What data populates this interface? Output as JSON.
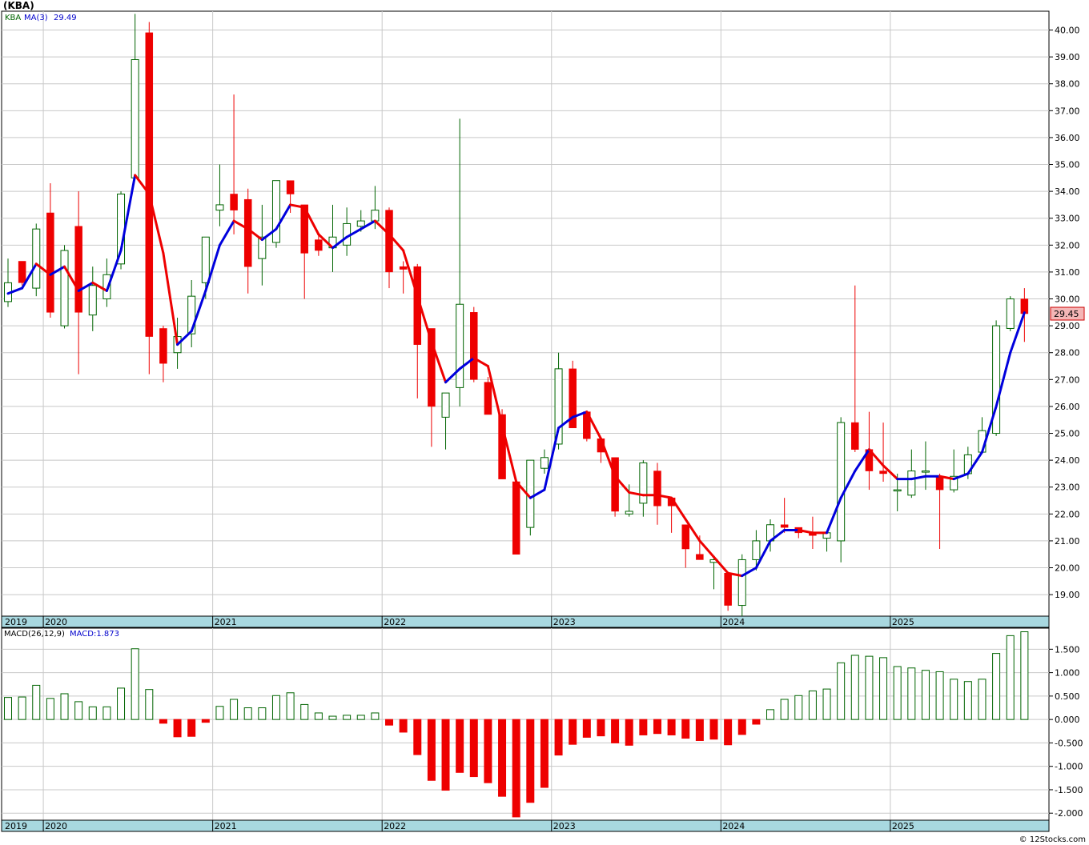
{
  "header": {
    "symbol": "(KBA)",
    "credit": "© 12Stocks.com"
  },
  "colors": {
    "up": "#006400",
    "down": "#ee0000",
    "ma_up": "#0000dd",
    "ma_down": "#ee0000",
    "timeline": "#a8d8e0",
    "grid": "#c8c8c8"
  },
  "chart_data": [
    {
      "type": "candlestick",
      "legend": {
        "symbol": "KBA",
        "ma_label": "MA(3)",
        "ma_value": "29.49"
      },
      "last_price": "29.45",
      "ylim": [
        18.2,
        40.7
      ],
      "y_ticks": [
        19.0,
        20.0,
        21.0,
        22.0,
        23.0,
        24.0,
        25.0,
        26.0,
        27.0,
        28.0,
        29.0,
        30.0,
        31.0,
        32.0,
        33.0,
        34.0,
        35.0,
        36.0,
        37.0,
        38.0,
        39.0,
        40.0
      ],
      "x_labels": [
        {
          "label": "2019",
          "index": 0
        },
        {
          "label": "2020",
          "index": 3
        },
        {
          "label": "2021",
          "index": 15
        },
        {
          "label": "2022",
          "index": 27
        },
        {
          "label": "2023",
          "index": 39
        },
        {
          "label": "2024",
          "index": 51
        },
        {
          "label": "2025",
          "index": 63
        }
      ],
      "candles": [
        {
          "o": 29.9,
          "h": 31.5,
          "l": 29.7,
          "c": 30.6
        },
        {
          "o": 31.4,
          "h": 31.4,
          "l": 30.5,
          "c": 30.6
        },
        {
          "o": 30.4,
          "h": 32.8,
          "l": 30.1,
          "c": 32.6
        },
        {
          "o": 33.2,
          "h": 34.3,
          "l": 29.3,
          "c": 29.5
        },
        {
          "o": 29.0,
          "h": 32.0,
          "l": 28.9,
          "c": 31.8
        },
        {
          "o": 32.7,
          "h": 34.0,
          "l": 27.2,
          "c": 29.5
        },
        {
          "o": 29.4,
          "h": 31.2,
          "l": 28.8,
          "c": 30.5
        },
        {
          "o": 30.0,
          "h": 31.5,
          "l": 29.7,
          "c": 30.9
        },
        {
          "o": 31.3,
          "h": 34.0,
          "l": 31.1,
          "c": 33.9
        },
        {
          "o": 34.5,
          "h": 40.6,
          "l": 34.5,
          "c": 38.9
        },
        {
          "o": 39.9,
          "h": 40.3,
          "l": 27.2,
          "c": 28.6
        },
        {
          "o": 28.9,
          "h": 29.0,
          "l": 26.9,
          "c": 27.6
        },
        {
          "o": 28.0,
          "h": 29.3,
          "l": 27.4,
          "c": 28.6
        },
        {
          "o": 28.7,
          "h": 30.7,
          "l": 28.2,
          "c": 30.1
        },
        {
          "o": 30.6,
          "h": 32.3,
          "l": 30.0,
          "c": 32.3
        },
        {
          "o": 33.3,
          "h": 35.0,
          "l": 32.7,
          "c": 33.5
        },
        {
          "o": 33.9,
          "h": 37.6,
          "l": 32.4,
          "c": 33.3
        },
        {
          "o": 33.7,
          "h": 34.1,
          "l": 30.2,
          "c": 31.2
        },
        {
          "o": 31.5,
          "h": 33.5,
          "l": 30.5,
          "c": 32.3
        },
        {
          "o": 32.1,
          "h": 34.3,
          "l": 31.9,
          "c": 34.4
        },
        {
          "o": 34.4,
          "h": 34.4,
          "l": 33.2,
          "c": 33.9
        },
        {
          "o": 33.5,
          "h": 33.5,
          "l": 30.0,
          "c": 31.7
        },
        {
          "o": 32.2,
          "h": 32.4,
          "l": 31.6,
          "c": 31.8
        },
        {
          "o": 31.9,
          "h": 33.5,
          "l": 31.0,
          "c": 32.3
        },
        {
          "o": 32.0,
          "h": 33.4,
          "l": 31.6,
          "c": 32.8
        },
        {
          "o": 32.7,
          "h": 33.3,
          "l": 32.5,
          "c": 32.9
        },
        {
          "o": 32.9,
          "h": 34.2,
          "l": 32.6,
          "c": 33.3
        },
        {
          "o": 33.3,
          "h": 33.4,
          "l": 30.4,
          "c": 31.0
        },
        {
          "o": 31.2,
          "h": 31.4,
          "l": 30.2,
          "c": 31.1
        },
        {
          "o": 31.2,
          "h": 31.3,
          "l": 26.3,
          "c": 28.3
        },
        {
          "o": 28.9,
          "h": 28.9,
          "l": 24.5,
          "c": 26.0
        },
        {
          "o": 25.6,
          "h": 26.5,
          "l": 24.4,
          "c": 26.5
        },
        {
          "o": 26.7,
          "h": 36.7,
          "l": 26.0,
          "c": 29.8
        },
        {
          "o": 29.5,
          "h": 29.7,
          "l": 26.9,
          "c": 27.0
        },
        {
          "o": 26.9,
          "h": 27.1,
          "l": 25.7,
          "c": 25.7
        },
        {
          "o": 25.7,
          "h": 25.9,
          "l": 23.3,
          "c": 23.3
        },
        {
          "o": 23.2,
          "h": 23.3,
          "l": 20.5,
          "c": 20.5
        },
        {
          "o": 21.5,
          "h": 24.0,
          "l": 21.2,
          "c": 24.0
        },
        {
          "o": 23.7,
          "h": 24.4,
          "l": 23.5,
          "c": 24.1
        },
        {
          "o": 24.6,
          "h": 28.0,
          "l": 24.4,
          "c": 27.4
        },
        {
          "o": 27.4,
          "h": 27.7,
          "l": 25.2,
          "c": 25.2
        },
        {
          "o": 25.8,
          "h": 25.8,
          "l": 24.7,
          "c": 24.8
        },
        {
          "o": 24.8,
          "h": 24.8,
          "l": 23.9,
          "c": 24.3
        },
        {
          "o": 24.1,
          "h": 24.1,
          "l": 21.9,
          "c": 22.1
        },
        {
          "o": 22.0,
          "h": 23.1,
          "l": 21.9,
          "c": 22.1
        },
        {
          "o": 22.4,
          "h": 24.0,
          "l": 21.9,
          "c": 23.9
        },
        {
          "o": 23.6,
          "h": 23.9,
          "l": 21.6,
          "c": 22.3
        },
        {
          "o": 22.6,
          "h": 22.6,
          "l": 21.3,
          "c": 22.3
        },
        {
          "o": 21.6,
          "h": 21.6,
          "l": 20.0,
          "c": 20.7
        },
        {
          "o": 20.5,
          "h": 21.2,
          "l": 20.3,
          "c": 20.3
        },
        {
          "o": 20.2,
          "h": 20.4,
          "l": 19.2,
          "c": 20.3
        },
        {
          "o": 19.8,
          "h": 19.8,
          "l": 18.4,
          "c": 18.6
        },
        {
          "o": 18.6,
          "h": 20.5,
          "l": 18.2,
          "c": 20.3
        },
        {
          "o": 20.3,
          "h": 21.4,
          "l": 19.9,
          "c": 21.0
        },
        {
          "o": 21.0,
          "h": 21.8,
          "l": 20.6,
          "c": 21.6
        },
        {
          "o": 21.6,
          "h": 22.6,
          "l": 21.3,
          "c": 21.5
        },
        {
          "o": 21.5,
          "h": 21.5,
          "l": 21.1,
          "c": 21.3
        },
        {
          "o": 21.3,
          "h": 21.9,
          "l": 20.7,
          "c": 21.2
        },
        {
          "o": 21.1,
          "h": 21.2,
          "l": 20.6,
          "c": 21.3
        },
        {
          "o": 21.0,
          "h": 25.6,
          "l": 20.2,
          "c": 25.4
        },
        {
          "o": 25.4,
          "h": 30.5,
          "l": 24.3,
          "c": 24.4
        },
        {
          "o": 24.4,
          "h": 25.8,
          "l": 22.9,
          "c": 23.6
        },
        {
          "o": 23.6,
          "h": 25.4,
          "l": 23.2,
          "c": 23.5
        },
        {
          "o": 22.9,
          "h": 23.5,
          "l": 22.1,
          "c": 22.9
        },
        {
          "o": 22.7,
          "h": 24.4,
          "l": 22.6,
          "c": 23.6
        },
        {
          "o": 23.6,
          "h": 24.7,
          "l": 22.9,
          "c": 23.6
        },
        {
          "o": 23.4,
          "h": 23.5,
          "l": 20.7,
          "c": 22.9
        },
        {
          "o": 22.9,
          "h": 24.4,
          "l": 22.8,
          "c": 23.4
        },
        {
          "o": 23.5,
          "h": 24.5,
          "l": 23.3,
          "c": 24.2
        },
        {
          "o": 24.3,
          "h": 25.6,
          "l": 24.3,
          "c": 25.1
        },
        {
          "o": 25.0,
          "h": 29.2,
          "l": 24.9,
          "c": 29.0
        },
        {
          "o": 28.9,
          "h": 30.1,
          "l": 28.8,
          "c": 30.0
        },
        {
          "o": 30.0,
          "h": 30.4,
          "l": 28.4,
          "c": 29.45
        }
      ],
      "ma": [
        30.2,
        30.4,
        31.3,
        30.9,
        31.2,
        30.3,
        30.6,
        30.3,
        31.8,
        34.6,
        33.9,
        31.7,
        28.3,
        28.8,
        30.3,
        32.0,
        32.9,
        32.6,
        32.2,
        32.6,
        33.5,
        33.4,
        32.4,
        31.9,
        32.3,
        32.6,
        32.9,
        32.4,
        31.8,
        30.1,
        28.4,
        26.9,
        27.4,
        27.8,
        27.5,
        25.3,
        23.2,
        22.6,
        22.9,
        25.2,
        25.6,
        25.8,
        24.8,
        23.4,
        22.8,
        22.7,
        22.7,
        22.6,
        21.8,
        21.0,
        20.4,
        19.8,
        19.7,
        20.0,
        21.0,
        21.4,
        21.4,
        21.3,
        21.3,
        22.6,
        23.6,
        24.4,
        23.8,
        23.3,
        23.3,
        23.4,
        23.4,
        23.3,
        23.5,
        24.3,
        26.0,
        28.0,
        29.49
      ],
      "ma_trend": [
        "up",
        "up",
        "up",
        "down",
        "up",
        "down",
        "up",
        "down",
        "up",
        "up",
        "down",
        "down",
        "down",
        "up",
        "up",
        "up",
        "up",
        "down",
        "down",
        "up",
        "up",
        "down",
        "down",
        "down",
        "up",
        "up",
        "up",
        "down",
        "down",
        "down",
        "down",
        "down",
        "up",
        "up",
        "down",
        "down",
        "down",
        "down",
        "up",
        "up",
        "up",
        "up",
        "down",
        "down",
        "down",
        "down",
        "down",
        "down",
        "down",
        "down",
        "down",
        "down",
        "down",
        "up",
        "up",
        "up",
        "up",
        "down",
        "down",
        "up",
        "up",
        "up",
        "down",
        "down",
        "up",
        "up",
        "up",
        "down",
        "up",
        "up",
        "up",
        "up",
        "up"
      ]
    },
    {
      "type": "bar",
      "legend": {
        "label": "MACD(26,12,9)",
        "value_label": "MACD:1.873"
      },
      "ylim": [
        -2.15,
        1.95
      ],
      "y_ticks": [
        -2.0,
        -1.5,
        -1.0,
        -0.5,
        0.0,
        0.5,
        1.0,
        1.5
      ],
      "y_tick_labels": [
        "-2.000",
        "-1.500",
        "-1.000",
        "-0.500",
        "0.000",
        "0.500",
        "1.000",
        "1.500"
      ],
      "values": [
        0.47,
        0.48,
        0.73,
        0.45,
        0.55,
        0.38,
        0.27,
        0.27,
        0.67,
        1.51,
        0.64,
        -0.08,
        -0.37,
        -0.36,
        -0.06,
        0.28,
        0.43,
        0.25,
        0.25,
        0.51,
        0.57,
        0.32,
        0.14,
        0.07,
        0.09,
        0.09,
        0.14,
        -0.12,
        -0.27,
        -0.75,
        -1.3,
        -1.51,
        -1.13,
        -1.22,
        -1.35,
        -1.64,
        -2.08,
        -1.77,
        -1.45,
        -0.76,
        -0.53,
        -0.38,
        -0.35,
        -0.5,
        -0.55,
        -0.33,
        -0.3,
        -0.33,
        -0.4,
        -0.45,
        -0.42,
        -0.54,
        -0.32,
        -0.1,
        0.21,
        0.43,
        0.51,
        0.61,
        0.65,
        1.21,
        1.37,
        1.35,
        1.32,
        1.13,
        1.1,
        1.05,
        1.02,
        0.86,
        0.81,
        0.86,
        1.41,
        1.79,
        1.873
      ]
    }
  ]
}
